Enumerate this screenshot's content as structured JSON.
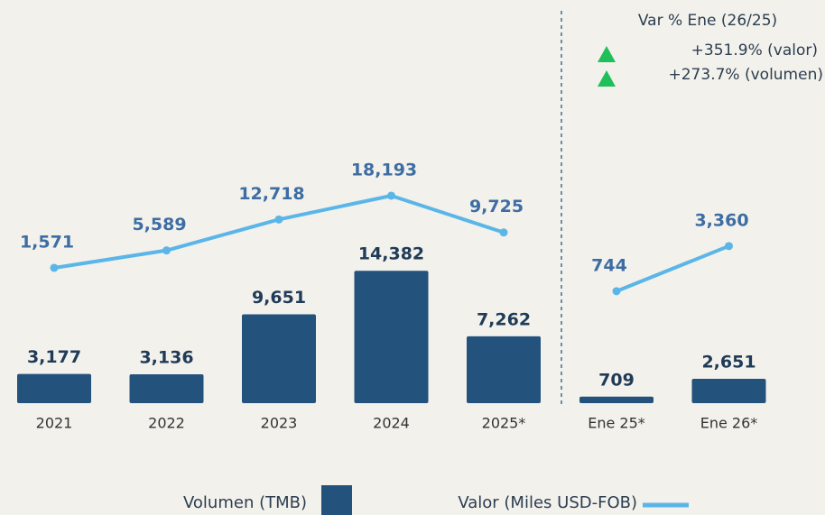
{
  "chart_data": [
    {
      "type": "bar",
      "categories": [
        "2021",
        "2022",
        "2023",
        "2024",
        "2025*"
      ],
      "ylim": [
        0,
        34000
      ],
      "y2lim": [
        -29600,
        42500
      ],
      "series": [
        {
          "name": "Volumen (TMB)",
          "type": "bar",
          "color": "#23527c",
          "values": [
            3177,
            3136,
            9651,
            14382,
            7262
          ],
          "value_labels": [
            "3,177",
            "3,136",
            "9,651",
            "14,382",
            "7,262"
          ]
        },
        {
          "name": "Valor (Miles USD-FOB)",
          "type": "line",
          "axis": "y2",
          "color": "#5ab6e8",
          "values": [
            1571,
            5589,
            12718,
            18193,
            9725
          ],
          "value_labels": [
            "1,571",
            "5,589",
            "12,718",
            "18,193",
            "9,725"
          ]
        }
      ]
    },
    {
      "type": "bar",
      "categories": [
        "Ene 25*",
        "Ene 26*"
      ],
      "ylim": [
        0,
        34000
      ],
      "y2lim": [
        -5750,
        12400
      ],
      "annotation": {
        "title": "Var % Ene (26/25)",
        "items": [
          "+351.9% (valor)",
          "+273.7% (volumen)"
        ]
      },
      "series": [
        {
          "type": "bar",
          "color": "#23527c",
          "values": [
            709,
            2651
          ],
          "value_labels": [
            "709",
            "2,651"
          ]
        },
        {
          "type": "line",
          "axis": "y2",
          "color": "#5ab6e8",
          "values": [
            744,
            3360
          ],
          "value_labels": [
            "744",
            "3,360"
          ]
        }
      ]
    }
  ]
}
